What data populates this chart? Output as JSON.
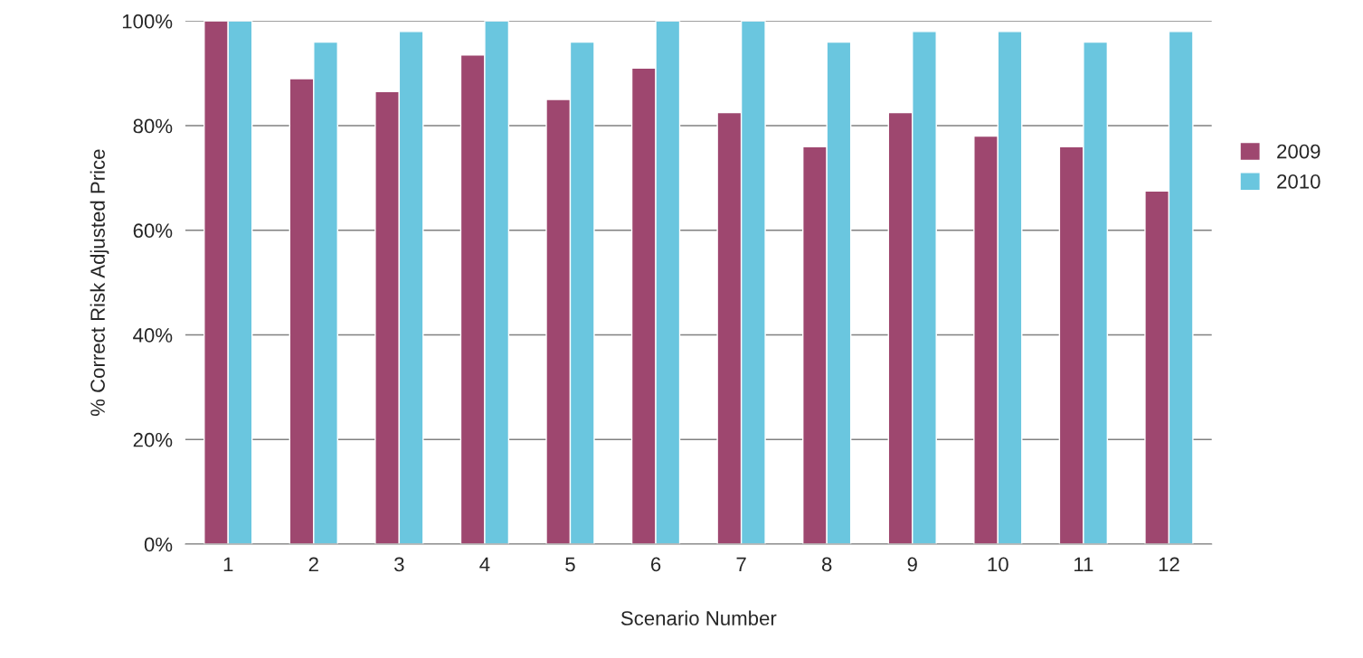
{
  "chart_data": {
    "type": "bar",
    "xlabel": "Scenario Number",
    "ylabel": "% Correct Risk Adjusted Price",
    "categories": [
      "1",
      "2",
      "3",
      "4",
      "5",
      "6",
      "7",
      "8",
      "9",
      "10",
      "11",
      "12"
    ],
    "series": [
      {
        "name": "2009",
        "color": "#9e476f",
        "values": [
          100,
          89,
          86.5,
          93.5,
          85,
          91,
          82.5,
          76,
          82.5,
          78,
          76,
          67.5
        ]
      },
      {
        "name": "2010",
        "color": "#6ac6df",
        "values": [
          100,
          96,
          98,
          100,
          96,
          100,
          100,
          96,
          98,
          98,
          96,
          98
        ]
      }
    ],
    "ylim": [
      0,
      100
    ],
    "yticks": [
      {
        "value": 0,
        "label": "0%"
      },
      {
        "value": 20,
        "label": "20%"
      },
      {
        "value": 40,
        "label": "40%"
      },
      {
        "value": 60,
        "label": "60%"
      },
      {
        "value": 80,
        "label": "80%"
      },
      {
        "value": 100,
        "label": "100%"
      }
    ],
    "grid": "y",
    "legend": "right"
  }
}
